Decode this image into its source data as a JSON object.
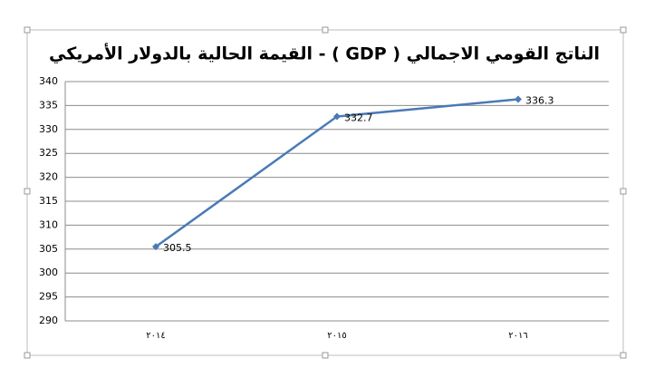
{
  "chart_data": {
    "type": "line",
    "title": "الناتج القومي الاجمالي ( GDP ) - القيمة الحالية بالدولار الأمريكي",
    "categories": [
      "٢٠١٤",
      "٢٠١٥",
      "٢٠١٦"
    ],
    "values": [
      305.5,
      332.7,
      336.3
    ],
    "color": "#4a7ab5",
    "ylim": [
      290,
      340
    ],
    "yticks": [
      290,
      295,
      300,
      305,
      310,
      315,
      320,
      325,
      330,
      335,
      340
    ],
    "grid": true,
    "data_labels": true
  }
}
